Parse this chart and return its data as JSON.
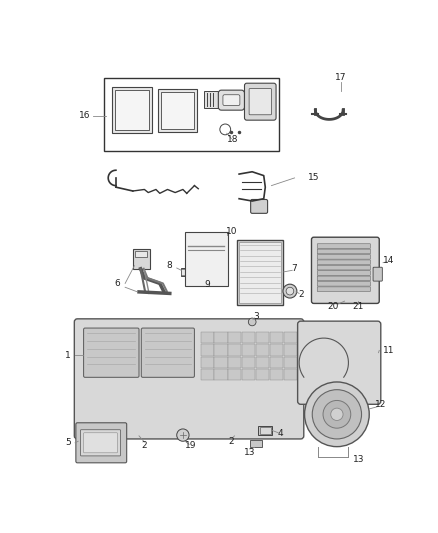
{
  "bg_color": "#ffffff",
  "fig_width": 4.38,
  "fig_height": 5.33,
  "dpi": 100,
  "lc": "#333333",
  "tc": "#222222",
  "fs": 6.5,
  "part_color": "#d0d0d0",
  "edge_color": "#444444"
}
